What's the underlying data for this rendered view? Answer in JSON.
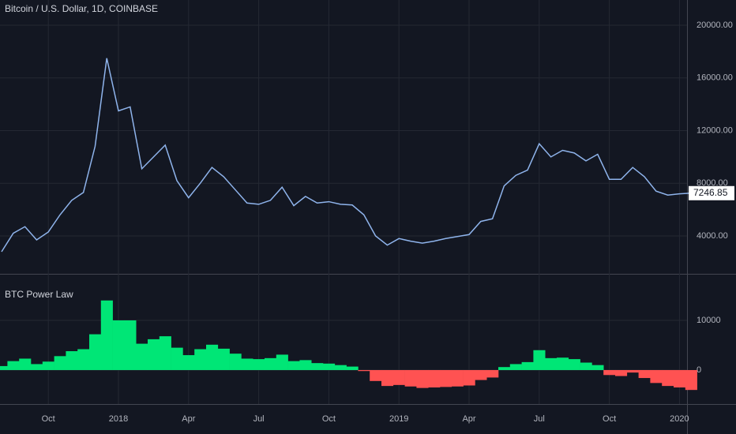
{
  "chart_data": [
    {
      "type": "line",
      "title": "Bitcoin / U.S. Dollar, 1D, COINBASE",
      "color": "#8fb4ec",
      "values": [
        2800,
        4200,
        4700,
        3700,
        4300,
        5600,
        6700,
        7300,
        10800,
        17500,
        13500,
        13800,
        9100,
        10000,
        10900,
        8200,
        6900,
        8000,
        9200,
        8500,
        7500,
        6500,
        6400,
        6700,
        7700,
        6300,
        7000,
        6500,
        6600,
        6400,
        6350,
        5600,
        4000,
        3300,
        3800,
        3600,
        3450,
        3600,
        3800,
        3950,
        4100,
        5100,
        5300,
        7800,
        8600,
        9000,
        11000,
        10000,
        10500,
        10300,
        9700,
        10200,
        8300,
        8300,
        9200,
        8500,
        7400,
        7100,
        7200,
        7246.85
      ],
      "ylim": [
        1120,
        21920
      ],
      "yticks": [
        {
          "value": 4000,
          "label": "4000.00"
        },
        {
          "value": 8000,
          "label": "8000.00"
        },
        {
          "value": 12000,
          "label": "12000.00"
        },
        {
          "value": 16000,
          "label": "16000.00"
        },
        {
          "value": 20000,
          "label": "20000.00"
        }
      ],
      "grid": true
    },
    {
      "type": "bar",
      "title": "BTC Power Law",
      "positive_color": "#00e676",
      "negative_color": "#ff5252",
      "categories": [
        null,
        null,
        null,
        null,
        "Oct",
        null,
        null,
        null,
        null,
        null,
        "2018",
        null,
        null,
        null,
        null,
        null,
        "Apr",
        null,
        null,
        null,
        null,
        null,
        "Jul",
        null,
        null,
        null,
        null,
        null,
        "Oct",
        null,
        null,
        null,
        null,
        null,
        "2019",
        null,
        null,
        null,
        null,
        null,
        "Apr",
        null,
        null,
        null,
        null,
        null,
        "Jul",
        null,
        null,
        null,
        null,
        null,
        "Oct",
        null,
        null,
        null,
        null,
        null,
        "2020",
        null
      ],
      "values": [
        800,
        1800,
        2300,
        1200,
        1700,
        2800,
        3800,
        4200,
        7200,
        14000,
        10000,
        10000,
        5300,
        6200,
        6800,
        4500,
        3000,
        4200,
        5100,
        4300,
        3300,
        2300,
        2200,
        2400,
        3100,
        1800,
        2000,
        1400,
        1300,
        1000,
        700,
        -200,
        -2200,
        -3200,
        -3000,
        -3300,
        -3600,
        -3500,
        -3400,
        -3300,
        -3100,
        -2000,
        -1500,
        600,
        1200,
        1600,
        4000,
        2400,
        2500,
        2200,
        1500,
        1000,
        -1000,
        -1200,
        -500,
        -1600,
        -2600,
        -3200,
        -3500,
        -4000
      ],
      "ylim": [
        -6830,
        19200
      ],
      "yticks": [
        0,
        10000
      ],
      "grid": true
    }
  ]
}
